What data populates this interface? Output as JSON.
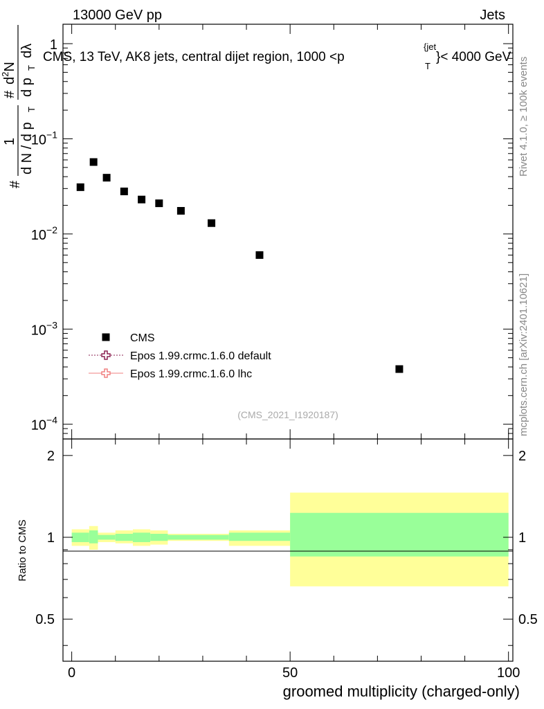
{
  "header": {
    "left": "13000 GeV pp",
    "right": "Jets"
  },
  "side_labels": {
    "rivet": "Rivet 4.1.0, ≥ 100k events",
    "mcplots": "mcplots.cern.ch [arXiv:2401.10621]"
  },
  "chart_data": {
    "type": "scatter",
    "title": "CMS, 13 TeV, AK8 jets, central dijet region, 1000 <p",
    "title_sup": "{jet",
    "title_sub": "T",
    "title_end": "}< 4000 GeV",
    "analysis_id": "(CMS_2021_I1920187)",
    "xlabel": "groomed multiplicity (charged-only)",
    "ylabel": "# 1/dN/dp_T # d^2N/(dp_T dλ)",
    "ylabel_parts": {
      "hash1": "#",
      "one": "1",
      "dN": "d N / d p",
      "T1": "T",
      "hash2": "#",
      "d2N": "d",
      "sup2": "2",
      "N": "N",
      "dpT": "d p",
      "T2": "T",
      "dlam": "dλ"
    },
    "ratio_ylabel": "Ratio to CMS",
    "xlim": [
      -2,
      101
    ],
    "ylim_log": [
      7e-05,
      1.6
    ],
    "ratio_ylim": [
      0.35,
      2.3
    ],
    "xticks": [
      {
        "v": 0,
        "label": "0"
      },
      {
        "v": 50,
        "label": "50"
      },
      {
        "v": 100,
        "label": "100"
      }
    ],
    "yticks": [
      {
        "v": 1,
        "base": "1",
        "exp": ""
      },
      {
        "v": 0.1,
        "base": "10",
        "exp": "−1"
      },
      {
        "v": 0.01,
        "base": "10",
        "exp": "−2"
      },
      {
        "v": 0.001,
        "base": "10",
        "exp": "−3"
      },
      {
        "v": 0.0001,
        "base": "10",
        "exp": "−4"
      }
    ],
    "ratio_yticks": [
      {
        "v": 0.5,
        "label": "0.5"
      },
      {
        "v": 1,
        "label": "1"
      },
      {
        "v": 2,
        "label": "2"
      }
    ],
    "series": [
      {
        "name": "CMS",
        "x": [
          2,
          5,
          8,
          12,
          16,
          20,
          25,
          32,
          43,
          75
        ],
        "y": [
          0.031,
          0.057,
          0.039,
          0.028,
          0.023,
          0.021,
          0.0175,
          0.013,
          0.006,
          0.00038
        ],
        "bins": [
          [
            0,
            4
          ],
          [
            4,
            6
          ],
          [
            6,
            10
          ],
          [
            10,
            14
          ],
          [
            14,
            18
          ],
          [
            18,
            22
          ],
          [
            22,
            36
          ],
          [
            36,
            36
          ],
          [
            36,
            50
          ],
          [
            50,
            100
          ]
        ],
        "ratio_green": [
          [
            0.96,
            1.04
          ],
          [
            0.95,
            1.06
          ],
          [
            0.98,
            1.02
          ],
          [
            0.97,
            1.03
          ],
          [
            0.96,
            1.04
          ],
          [
            0.97,
            1.03
          ],
          [
            0.98,
            1.02
          ],
          [
            0.98,
            1.02
          ],
          [
            0.97,
            1.04
          ],
          [
            0.85,
            1.23
          ]
        ],
        "ratio_yellow": [
          [
            0.93,
            1.07
          ],
          [
            0.9,
            1.1
          ],
          [
            0.96,
            1.04
          ],
          [
            0.95,
            1.06
          ],
          [
            0.93,
            1.07
          ],
          [
            0.94,
            1.06
          ],
          [
            0.97,
            1.03
          ],
          [
            0.97,
            1.03
          ],
          [
            0.93,
            1.06
          ],
          [
            0.66,
            1.46
          ]
        ]
      }
    ],
    "legend": [
      {
        "name": "CMS",
        "marker": "square",
        "color": "#000000"
      },
      {
        "name": "Epos 1.99.crmc.1.6.0 default",
        "marker": "open-cross",
        "color": "#8b2252"
      },
      {
        "name": "Epos 1.99.crmc.1.6.0 lhc",
        "marker": "open-cross",
        "color": "#f08080"
      }
    ],
    "colors": {
      "green": "#99ff99",
      "yellow": "#ffff99",
      "data": "#000000"
    }
  }
}
